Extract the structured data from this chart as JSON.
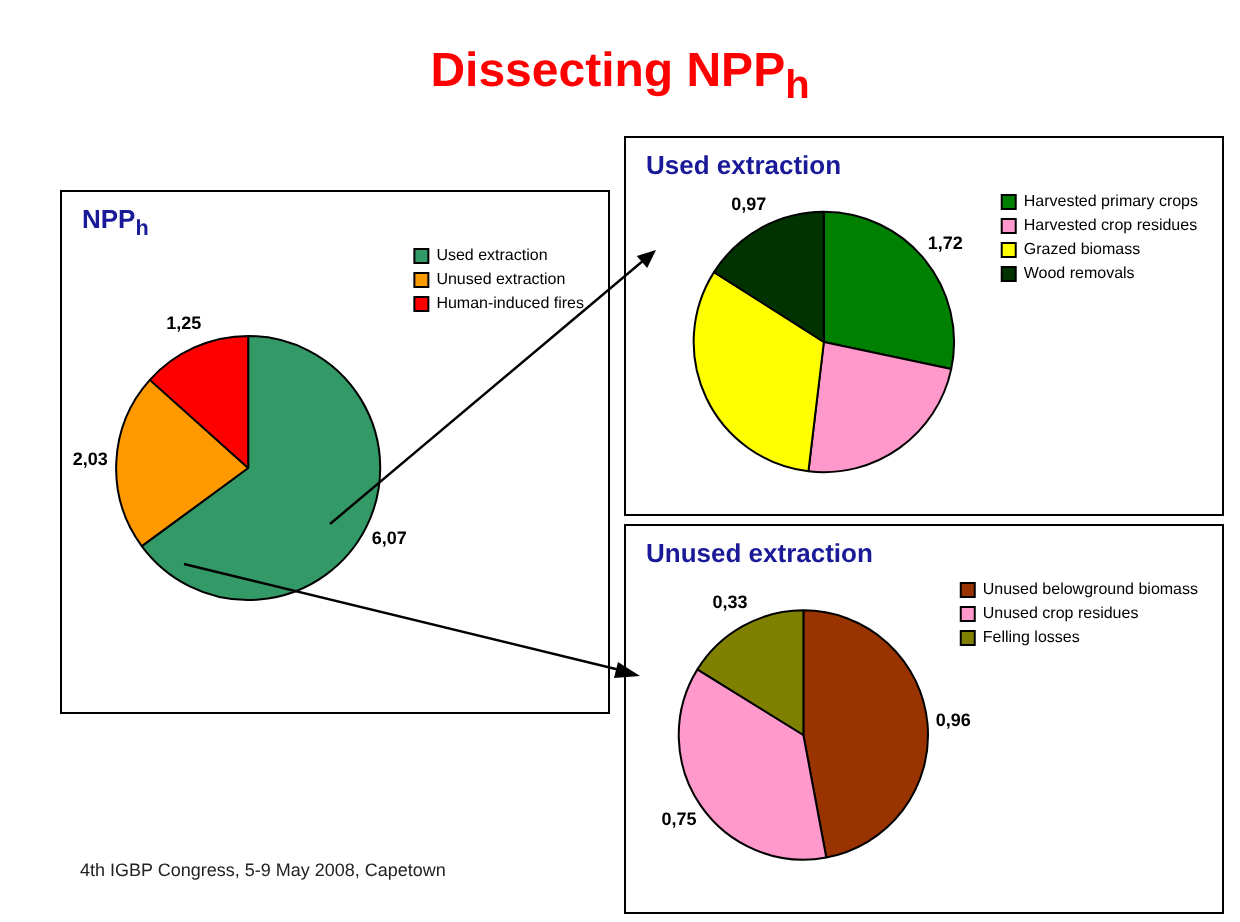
{
  "chart_data": [
    {
      "type": "pie",
      "title": "Dissecting NPP$_{h}$",
      "subtitle": "NPP$_{h}$",
      "categories": [
        "Used extraction",
        "Unused extraction",
        "Human-induced fires"
      ],
      "values": [
        6.07,
        2.03,
        1.25
      ],
      "colors": [
        "#339966",
        "#ff9900",
        "#ff0000"
      ],
      "value_labels": [
        "6,07",
        "2,03",
        "1,25"
      ],
      "legend": "top right",
      "annotations": [
        "4th IGBP Congress, 5-9 May 2008, Capetown"
      ]
    },
    {
      "type": "pie",
      "title": "Used extraction",
      "categories": [
        "Harvested primary crops",
        "Harvested crop residues",
        "Grazed biomass",
        "Wood removals"
      ],
      "values": [
        1.72,
        1.43,
        1.95,
        0.97
      ],
      "colors": [
        "#008000",
        "#ff99cc",
        "#ffff00",
        "#003300"
      ],
      "value_labels": [
        "1,72",
        null,
        null,
        "0,97"
      ],
      "legend": "top right"
    },
    {
      "type": "pie",
      "title": "Unused extraction",
      "categories": [
        "Unused belowground biomass",
        "Unused crop residues",
        "Felling losses"
      ],
      "values": [
        0.96,
        0.75,
        0.33
      ],
      "colors": [
        "#993300",
        "#ff99cc",
        "#808000"
      ],
      "value_labels": [
        "0,96",
        "0,75",
        "0,33"
      ],
      "legend": "top right"
    }
  ]
}
